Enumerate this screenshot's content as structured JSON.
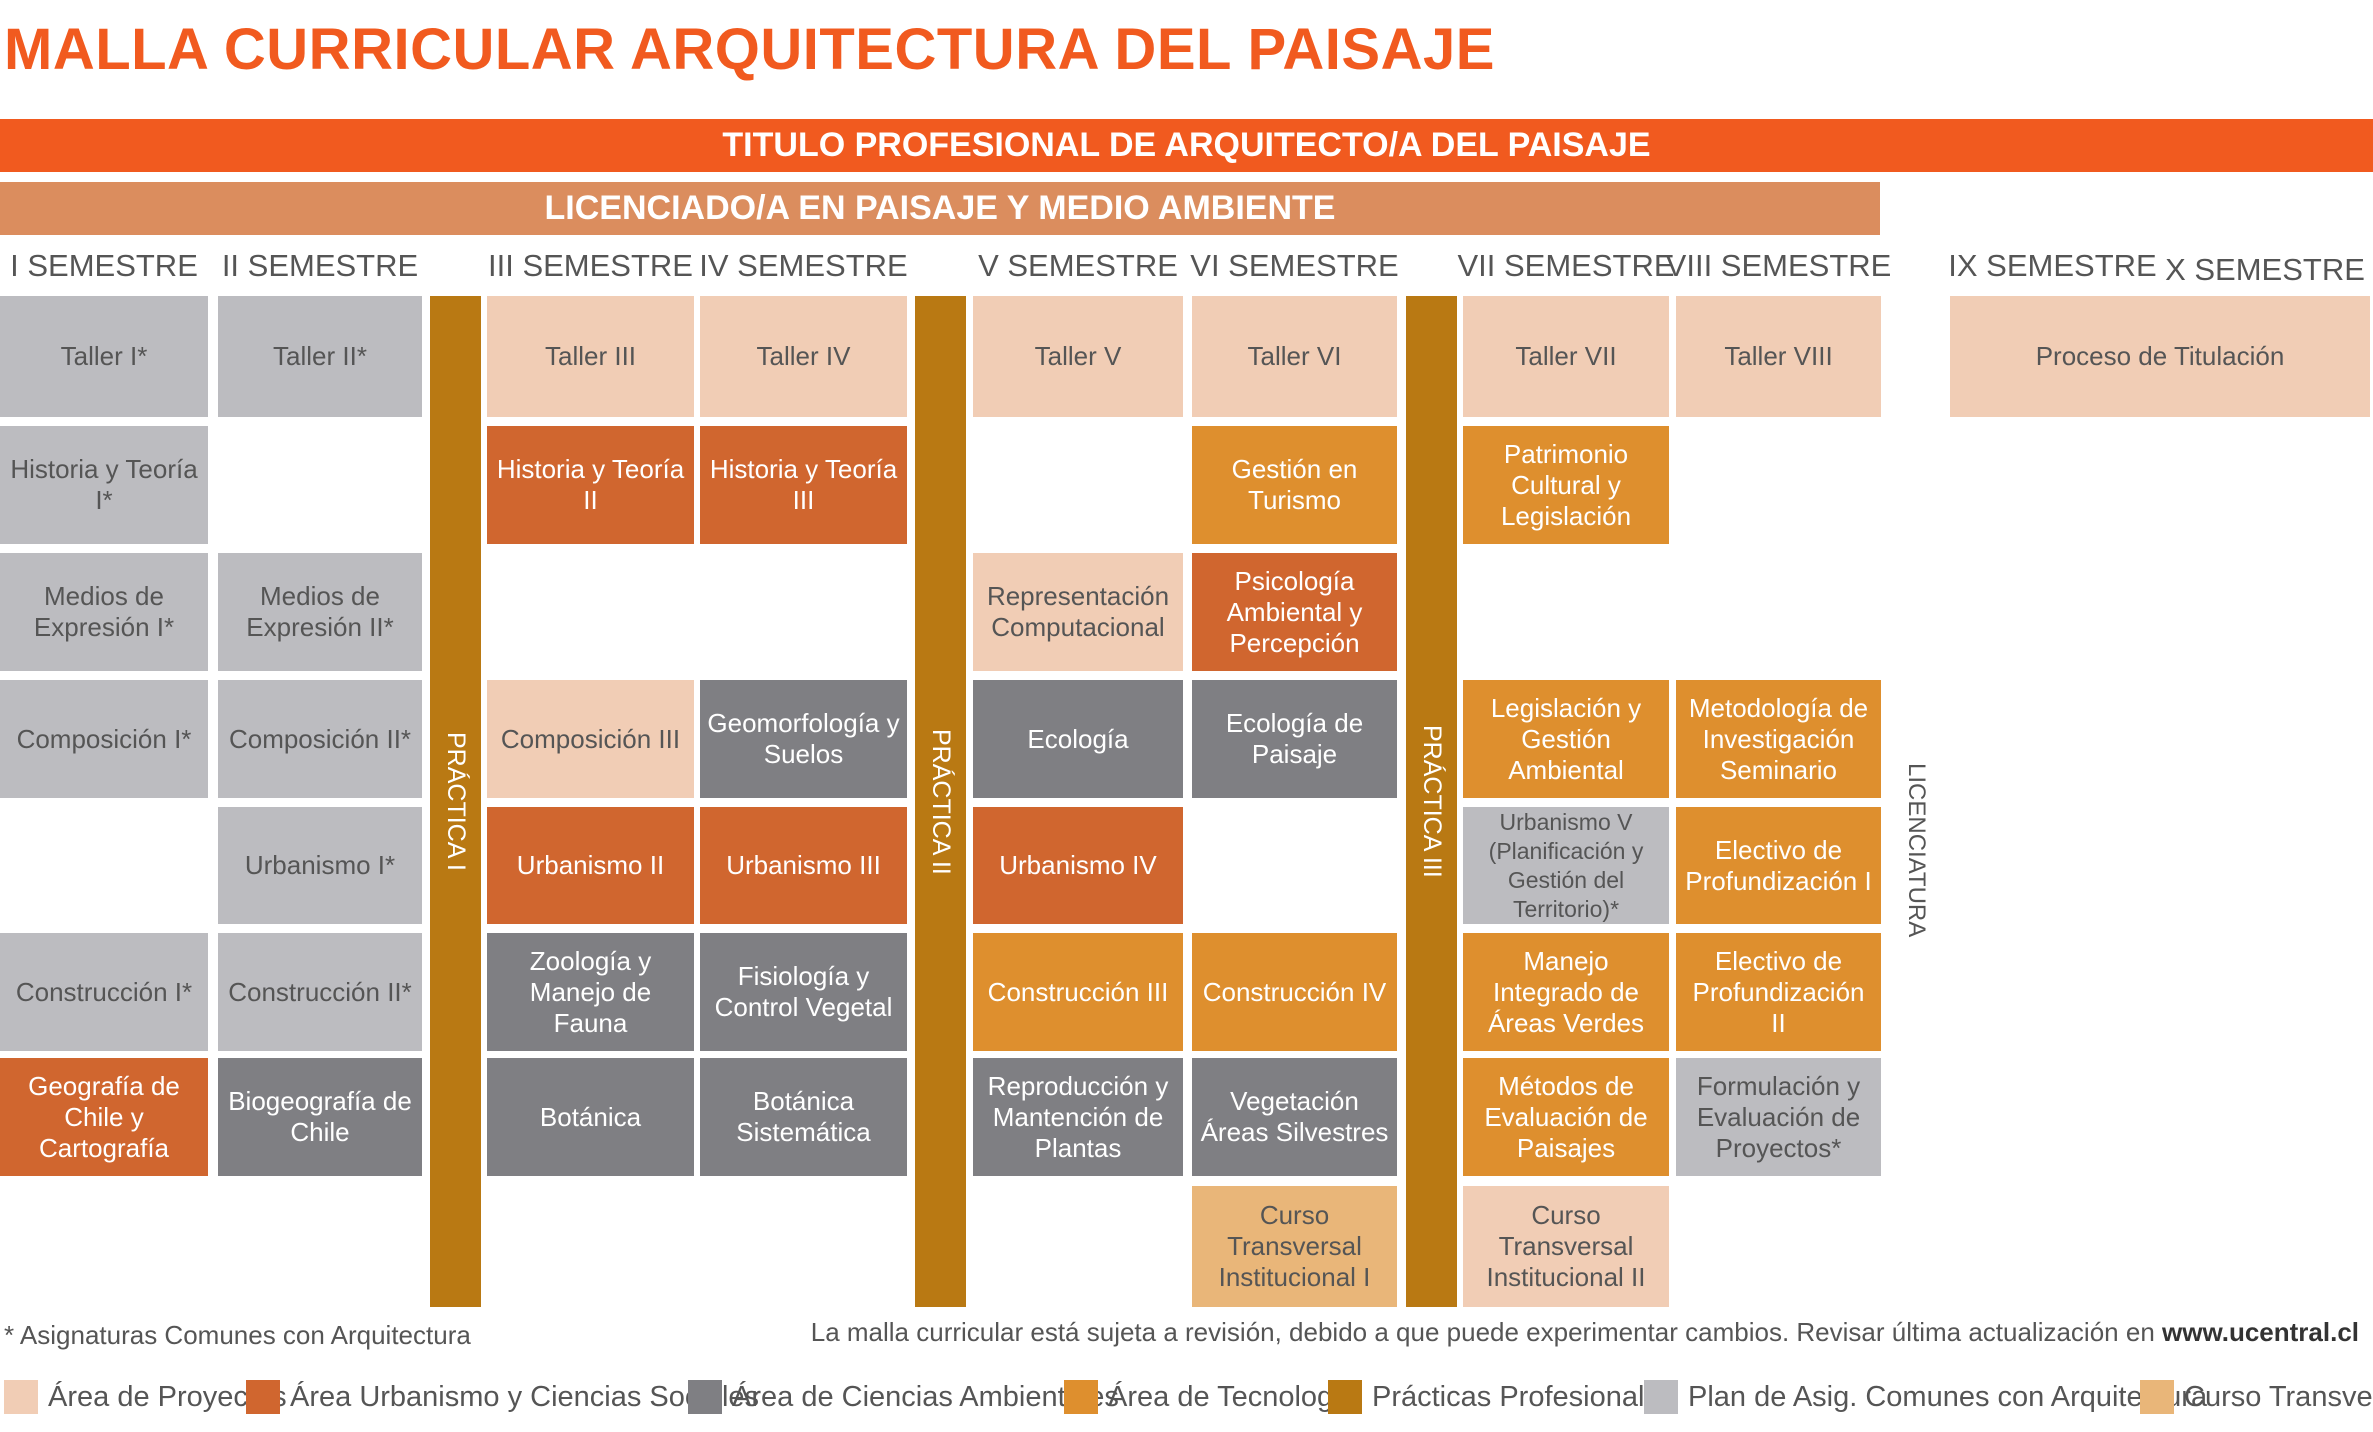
{
  "title": "MALLA CURRICULAR ARQUITECTURA DEL PAISAJE",
  "titulo_bar": "TITULO PROFESIONAL DE ARQUITECTO/A DEL PAISAJE",
  "licenciado_bar": "LICENCIADO/A EN PAISAJE Y MEDIO AMBIENTE",
  "semesters": [
    "I SEMESTRE",
    "II SEMESTRE",
    "III SEMESTRE",
    "IV SEMESTRE",
    "V SEMESTRE",
    "VI SEMESTRE",
    "VII SEMESTRE",
    "VIII SEMESTRE",
    "IX SEMESTRE",
    "X SEMESTRE"
  ],
  "practicas": [
    "PRÁCTICA I",
    "PRÁCTICA II",
    "PRÁCTICA III"
  ],
  "licenciatura_label": "LICENCIATURA",
  "colors": {
    "proyectos": "#f1cdb5",
    "urbanismo": "#d0662f",
    "ambientales": "#7f7f83",
    "tecnologia": "#de8f2e",
    "practicas": "#b97913",
    "comunes": "#bcbcc0",
    "transversal": "#e9b679"
  },
  "courses": [
    {
      "name": "Taller I*",
      "area": "comunes"
    },
    {
      "name": "Historia y Teoría I*",
      "area": "comunes"
    },
    {
      "name": "Medios de Expresión I*",
      "area": "comunes"
    },
    {
      "name": "Composición I*",
      "area": "comunes"
    },
    {
      "name": "Construcción I*",
      "area": "comunes"
    },
    {
      "name": "Geografía de Chile y Cartografía",
      "area": "urbanismo"
    },
    {
      "name": "Taller II*",
      "area": "comunes"
    },
    {
      "name": "Medios de Expresión II*",
      "area": "comunes"
    },
    {
      "name": "Composición II*",
      "area": "comunes"
    },
    {
      "name": "Urbanismo I*",
      "area": "comunes"
    },
    {
      "name": "Construcción II*",
      "area": "comunes"
    },
    {
      "name": "Biogeografía de Chile",
      "area": "ambientales"
    },
    {
      "name": "Taller III",
      "area": "proyectos"
    },
    {
      "name": "Historia y Teoría II",
      "area": "urbanismo"
    },
    {
      "name": "Composición III",
      "area": "proyectos"
    },
    {
      "name": "Urbanismo II",
      "area": "urbanismo"
    },
    {
      "name": "Zoología y Manejo de Fauna",
      "area": "ambientales"
    },
    {
      "name": "Botánica",
      "area": "ambientales"
    },
    {
      "name": "Taller IV",
      "area": "proyectos"
    },
    {
      "name": "Historia y Teoría III",
      "area": "urbanismo"
    },
    {
      "name": "Geomorfología y Suelos",
      "area": "ambientales"
    },
    {
      "name": "Urbanismo III",
      "area": "urbanismo"
    },
    {
      "name": "Fisiología y Control Vegetal",
      "area": "ambientales"
    },
    {
      "name": "Botánica Sistemática",
      "area": "ambientales"
    },
    {
      "name": "Taller V",
      "area": "proyectos"
    },
    {
      "name": "Representación Computacional",
      "area": "proyectos"
    },
    {
      "name": "Ecología",
      "area": "ambientales"
    },
    {
      "name": "Urbanismo IV",
      "area": "urbanismo"
    },
    {
      "name": "Construcción III",
      "area": "tecnologia"
    },
    {
      "name": "Reproducción y Mantención de Plantas",
      "area": "ambientales"
    },
    {
      "name": "Taller VI",
      "area": "proyectos"
    },
    {
      "name": "Gestión en Turismo",
      "area": "tecnologia"
    },
    {
      "name": "Psicología Ambiental y Percepción",
      "area": "urbanismo"
    },
    {
      "name": "Ecología de Paisaje",
      "area": "ambientales"
    },
    {
      "name": "Construcción IV",
      "area": "tecnologia"
    },
    {
      "name": "Vegetación Áreas Silvestres",
      "area": "ambientales"
    },
    {
      "name": "Curso Transversal Institucional I",
      "area": "transversal"
    },
    {
      "name": "Taller VII",
      "area": "proyectos"
    },
    {
      "name": "Patrimonio Cultural y Legislación",
      "area": "tecnologia"
    },
    {
      "name": "Legislación y Gestión Ambiental",
      "area": "tecnologia"
    },
    {
      "name": "Urbanismo V (Planificación y Gestión del Territorio)*",
      "area": "comunes"
    },
    {
      "name": "Manejo Integrado de Áreas Verdes",
      "area": "tecnologia"
    },
    {
      "name": "Métodos de Evaluación de Paisajes",
      "area": "tecnologia"
    },
    {
      "name": "Curso Transversal Institucional II",
      "area": "proyectos"
    },
    {
      "name": "Taller VIII",
      "area": "proyectos"
    },
    {
      "name": "Metodología de Investigación Seminario",
      "area": "tecnologia"
    },
    {
      "name": "Electivo de Profundización I",
      "area": "tecnologia"
    },
    {
      "name": "Electivo de Profundización II",
      "area": "tecnologia"
    },
    {
      "name": "Formulación y Evaluación de Proyectos*",
      "area": "comunes"
    },
    {
      "name": "Proceso de Titulación",
      "area": "proyectos"
    }
  ],
  "footnote": "* Asignaturas Comunes con Arquitectura",
  "disclaimer_text": "La malla curricular está sujeta a revisión, debido a que puede experimentar cambios. Revisar última actualización en",
  "disclaimer_url": "www.ucentral.cl",
  "legend": [
    {
      "label": "Área de Proyectos",
      "area": "proyectos"
    },
    {
      "label": "Área Urbanismo y Ciencias Sociales",
      "area": "urbanismo"
    },
    {
      "label": "Área de Ciencias Ambientales",
      "area": "ambientales"
    },
    {
      "label": "Área de Tecnología",
      "area": "tecnologia"
    },
    {
      "label": "Prácticas Profesionales",
      "area": "practicas"
    },
    {
      "label": "Plan de Asig. Comunes con Arquitectura",
      "area": "comunes"
    },
    {
      "label": "Curso Transversal",
      "area": "transversal"
    }
  ]
}
